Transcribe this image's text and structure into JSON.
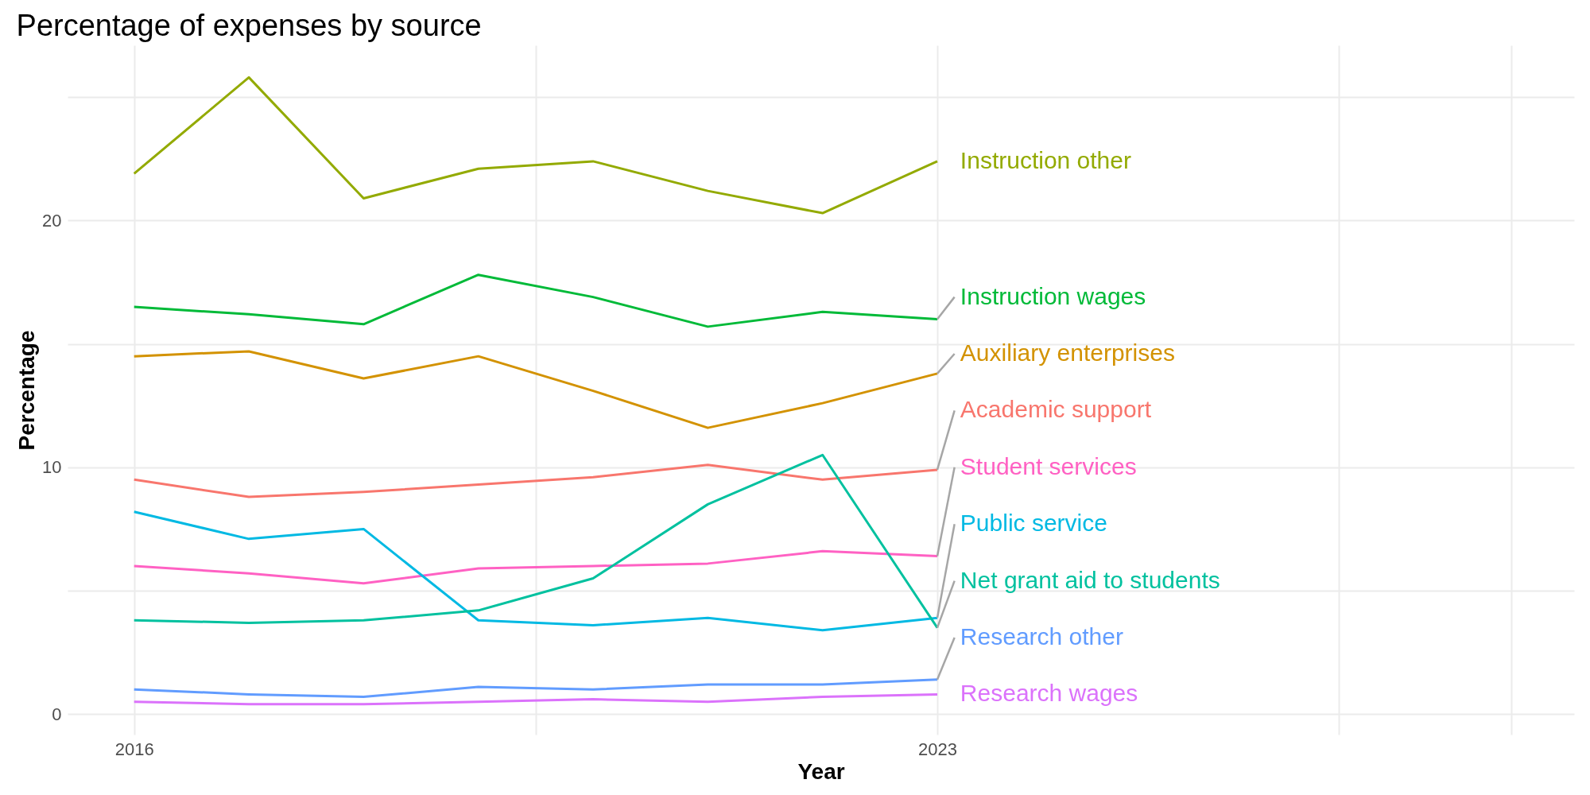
{
  "chart_data": {
    "type": "line",
    "title": "Percentage of expenses by source",
    "xlabel": "Year",
    "ylabel": "Percentage",
    "x": [
      2016,
      2017,
      2018,
      2019,
      2020,
      2021,
      2022,
      2023
    ],
    "series": [
      {
        "name": "Instruction other",
        "color": "#93aa00",
        "values": [
          21.9,
          25.8,
          20.9,
          22.1,
          22.4,
          21.2,
          20.3,
          22.4
        ]
      },
      {
        "name": "Instruction wages",
        "color": "#00ba38",
        "values": [
          16.5,
          16.2,
          15.8,
          17.8,
          16.9,
          15.7,
          16.3,
          16.0
        ]
      },
      {
        "name": "Auxiliary enterprises",
        "color": "#d39200",
        "values": [
          14.5,
          14.7,
          13.6,
          14.5,
          13.1,
          11.6,
          12.6,
          13.8
        ]
      },
      {
        "name": "Academic support",
        "color": "#f8766d",
        "values": [
          9.5,
          8.8,
          9.0,
          9.3,
          9.6,
          10.1,
          9.5,
          9.9
        ]
      },
      {
        "name": "Student services",
        "color": "#ff61c3",
        "values": [
          6.0,
          5.7,
          5.3,
          5.9,
          6.0,
          6.1,
          6.6,
          6.4
        ]
      },
      {
        "name": "Public service",
        "color": "#00b9e3",
        "values": [
          8.2,
          7.1,
          7.5,
          3.8,
          3.6,
          3.9,
          3.4,
          3.9
        ]
      },
      {
        "name": "Net grant aid to students",
        "color": "#00c19f",
        "values": [
          3.8,
          3.7,
          3.8,
          4.2,
          5.5,
          8.5,
          10.5,
          3.5
        ]
      },
      {
        "name": "Research other",
        "color": "#619cff",
        "values": [
          1.0,
          0.8,
          0.7,
          1.1,
          1.0,
          1.2,
          1.2,
          1.4
        ]
      },
      {
        "name": "Research wages",
        "color": "#db72fb",
        "values": [
          0.5,
          0.4,
          0.4,
          0.5,
          0.6,
          0.5,
          0.7,
          0.8
        ]
      }
    ],
    "xlim": [
      2015.42,
      2028.55
    ],
    "xticks": [
      2016,
      {
        "value": 2019.5,
        "label": null
      },
      2023,
      {
        "value": 2026.5,
        "label": null
      },
      {
        "value": 2028,
        "label": null
      }
    ],
    "ylim": [
      -0.83,
      27.1
    ],
    "yticks": [
      0,
      {
        "value": 5,
        "label": null
      },
      10,
      {
        "value": 15,
        "label": null
      },
      20,
      {
        "value": 25,
        "label": null
      }
    ],
    "grid": true,
    "legend": false,
    "marker": "none",
    "line_style": "solid"
  }
}
